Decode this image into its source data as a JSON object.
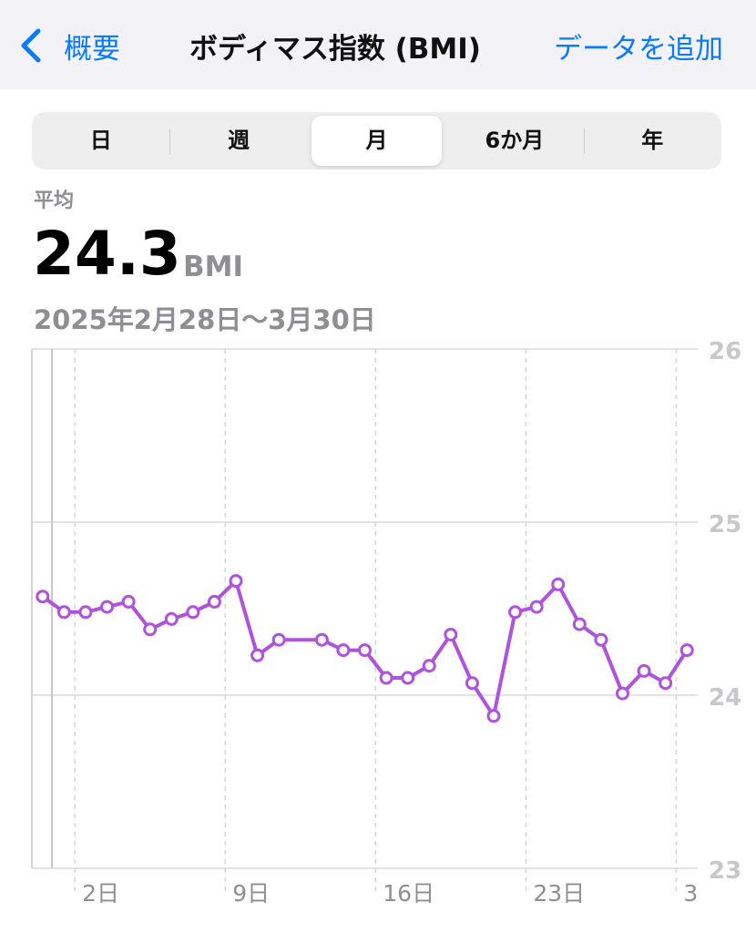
{
  "header": {
    "back": "概要",
    "title": "ボディマス指数 (BMI)",
    "action": "データを追加"
  },
  "segments": {
    "items": [
      "日",
      "週",
      "月",
      "6か月",
      "年"
    ],
    "selected": 2
  },
  "summary": {
    "label": "平均",
    "value": "24.3",
    "unit": "BMI",
    "range": "2025年2月28日〜3月30日"
  },
  "chart_data": {
    "type": "line",
    "color": "#af52de",
    "x": [
      0.5,
      1.5,
      2.5,
      3.5,
      4.5,
      5.5,
      6.5,
      7.5,
      8.5,
      9.5,
      10.5,
      11.5,
      13.5,
      14.5,
      15.5,
      16.5,
      17.5,
      18.5,
      19.5,
      20.5,
      21.5,
      22.5,
      23.5,
      24.5,
      25.5,
      26.5,
      27.5,
      28.5,
      29.5,
      30.5
    ],
    "values": [
      24.57,
      24.48,
      24.48,
      24.51,
      24.54,
      24.38,
      24.44,
      24.48,
      24.54,
      24.66,
      24.23,
      24.32,
      24.32,
      24.26,
      24.26,
      24.1,
      24.1,
      24.17,
      24.35,
      24.07,
      23.88,
      24.48,
      24.51,
      24.64,
      24.41,
      24.32,
      24.01,
      24.14,
      24.07,
      24.26
    ],
    "xlim": [
      0,
      31
    ],
    "xticks": [
      {
        "value": 2,
        "label": "2日"
      },
      {
        "value": 9,
        "label": "9日"
      },
      {
        "value": 16,
        "label": "16日"
      },
      {
        "value": 23,
        "label": "23日"
      },
      {
        "value": 30,
        "label": "3"
      }
    ],
    "ylim": [
      23,
      26
    ],
    "yticks": [
      23,
      24,
      25,
      26
    ],
    "grid": true
  }
}
